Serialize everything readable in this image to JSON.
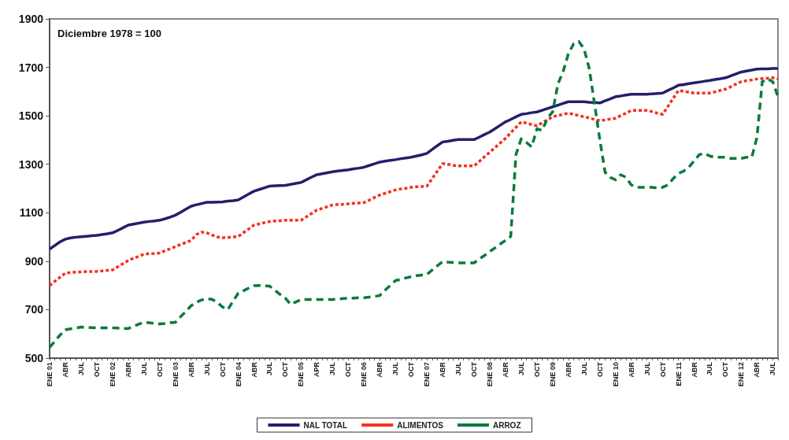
{
  "chart_data": {
    "type": "line",
    "annotations": [
      "Diciembre 1978 = 100"
    ],
    "categories": [
      "ENE 01",
      null,
      null,
      "ABR",
      null,
      null,
      "JUL",
      null,
      null,
      "OCT",
      null,
      null,
      "ENE 02",
      null,
      null,
      "ABR",
      null,
      null,
      "JUL",
      null,
      null,
      "OCT",
      null,
      null,
      "ENE 03",
      null,
      null,
      "ABR",
      null,
      null,
      "JUL",
      null,
      null,
      "OCT",
      null,
      null,
      "ENE 04",
      null,
      null,
      "ABR",
      null,
      null,
      "JUL",
      null,
      null,
      "OCT",
      null,
      null,
      "ENE 05",
      null,
      null,
      "APR",
      null,
      null,
      "JUL",
      null,
      null,
      "OCT",
      null,
      null,
      "ENE 06",
      null,
      null,
      "ABR",
      null,
      null,
      "JUL",
      null,
      null,
      "OCT",
      null,
      null,
      "ENE 07",
      null,
      null,
      "ABR",
      null,
      null,
      "JUL",
      null,
      null,
      "OCT",
      null,
      null,
      "ENE 08",
      null,
      null,
      "ABR",
      null,
      null,
      "JUL",
      null,
      null,
      "OCT",
      null,
      null,
      "ENE 09",
      null,
      null,
      "ABR",
      null,
      null,
      "JUL",
      null,
      null,
      "OCT",
      null,
      null,
      "ENE 10",
      null,
      null,
      "ABR",
      null,
      null,
      "JUL",
      null,
      null,
      "OCT",
      null,
      null,
      "ENE 11",
      null,
      null,
      "ABR",
      null,
      null,
      "JUL",
      null,
      null,
      "OCT",
      null,
      null,
      "ENE 12",
      null,
      null,
      "ABR",
      null,
      null,
      "JUL",
      null
    ],
    "ylim": [
      500,
      1900
    ],
    "yticks": [
      500,
      700,
      900,
      1100,
      1300,
      1500,
      1700,
      1900
    ],
    "grid": false,
    "legend": "bottom",
    "marker": "none",
    "series": [
      {
        "name": "NAL TOTAL",
        "color": "#22206b",
        "line_style": "solid",
        "values": [
          950,
          965,
          980,
          991,
          996,
          999,
          1001,
          1003,
          1005,
          1007,
          1010,
          1013,
          1017,
          1027,
          1038,
          1049,
          1053,
          1057,
          1061,
          1064,
          1066,
          1069,
          1075,
          1082,
          1090,
          1102,
          1115,
          1127,
          1133,
          1138,
          1143,
          1143,
          1144,
          1145,
          1148,
          1150,
          1153,
          1165,
          1177,
          1189,
          1196,
          1203,
          1210,
          1211,
          1212,
          1213,
          1217,
          1221,
          1225,
          1236,
          1247,
          1257,
          1261,
          1265,
          1269,
          1272,
          1275,
          1277,
          1281,
          1284,
          1288,
          1295,
          1302,
          1309,
          1313,
          1316,
          1319,
          1323,
          1326,
          1329,
          1334,
          1339,
          1345,
          1361,
          1377,
          1392,
          1395,
          1399,
          1402,
          1402,
          1402,
          1402,
          1412,
          1423,
          1433,
          1447,
          1461,
          1475,
          1485,
          1496,
          1506,
          1509,
          1513,
          1516,
          1523,
          1530,
          1537,
          1544,
          1551,
          1558,
          1558,
          1558,
          1558,
          1556,
          1555,
          1553,
          1562,
          1570,
          1579,
          1582,
          1586,
          1589,
          1589,
          1589,
          1589,
          1591,
          1592,
          1594,
          1605,
          1615,
          1626,
          1629,
          1633,
          1636,
          1639,
          1643,
          1646,
          1650,
          1653,
          1657,
          1665,
          1673,
          1681,
          1685,
          1689,
          1693,
          1694,
          1694,
          1695,
          1695
        ]
      },
      {
        "name": "ALIMENTOS",
        "color": "#f4311f",
        "line_style": "dotted",
        "values": [
          799,
          817,
          834,
          851,
          853,
          855,
          856,
          857,
          857,
          858,
          860,
          862,
          864,
          877,
          890,
          903,
          912,
          920,
          929,
          931,
          932,
          934,
          943,
          951,
          960,
          969,
          977,
          986,
          1010,
          1020,
          1017,
          1008,
          1000,
          997,
          998,
          1000,
          1002,
          1018,
          1033,
          1049,
          1054,
          1059,
          1064,
          1066,
          1067,
          1069,
          1069,
          1069,
          1069,
          1083,
          1097,
          1111,
          1118,
          1125,
          1132,
          1134,
          1135,
          1137,
          1139,
          1140,
          1142,
          1152,
          1163,
          1173,
          1180,
          1187,
          1194,
          1198,
          1201,
          1205,
          1207,
          1208,
          1210,
          1241,
          1272,
          1303,
          1300,
          1296,
          1293,
          1293,
          1293,
          1293,
          1312,
          1331,
          1350,
          1369,
          1388,
          1407,
          1430,
          1452,
          1475,
          1470,
          1464,
          1459,
          1471,
          1484,
          1496,
          1501,
          1506,
          1511,
          1506,
          1501,
          1496,
          1491,
          1485,
          1480,
          1483,
          1487,
          1490,
          1501,
          1511,
          1522,
          1522,
          1522,
          1522,
          1517,
          1511,
          1506,
          1539,
          1572,
          1605,
          1601,
          1598,
          1594,
          1594,
          1594,
          1594,
          1599,
          1605,
          1610,
          1620,
          1631,
          1641,
          1645,
          1648,
          1652,
          1654,
          1655,
          1657,
          1652
        ]
      },
      {
        "name": "ARROZ",
        "color": "#0b7a3b",
        "line_style": "dashed",
        "values": [
          544,
          570,
          595,
          617,
          621,
          624,
          628,
          627,
          626,
          625,
          625,
          625,
          625,
          624,
          623,
          622,
          631,
          640,
          648,
          646,
          643,
          641,
          643,
          646,
          648,
          671,
          693,
          716,
          730,
          740,
          745,
          743,
          730,
          711,
          700,
          735,
          768,
          778,
          789,
          799,
          800,
          798,
          797,
          780,
          763,
          747,
          722,
          732,
          742,
          742,
          742,
          742,
          742,
          742,
          742,
          744,
          746,
          747,
          748,
          749,
          749,
          752,
          755,
          758,
          780,
          800,
          820,
          825,
          831,
          836,
          840,
          843,
          846,
          863,
          881,
          898,
          896,
          895,
          893,
          893,
          893,
          893,
          909,
          924,
          940,
          955,
          971,
          986,
          1002,
          1340,
          1405,
          1390,
          1372,
          1446,
          1440,
          1490,
          1516,
          1631,
          1683,
          1756,
          1797,
          1807,
          1776,
          1693,
          1548,
          1402,
          1267,
          1246,
          1236,
          1257,
          1246,
          1215,
          1205,
          1205,
          1205,
          1205,
          1202,
          1205,
          1215,
          1241,
          1262,
          1272,
          1288,
          1314,
          1340,
          1345,
          1334,
          1329,
          1329,
          1329,
          1324,
          1324,
          1324,
          1329,
          1329,
          1412,
          1641,
          1652,
          1641,
          1579
        ]
      }
    ]
  }
}
